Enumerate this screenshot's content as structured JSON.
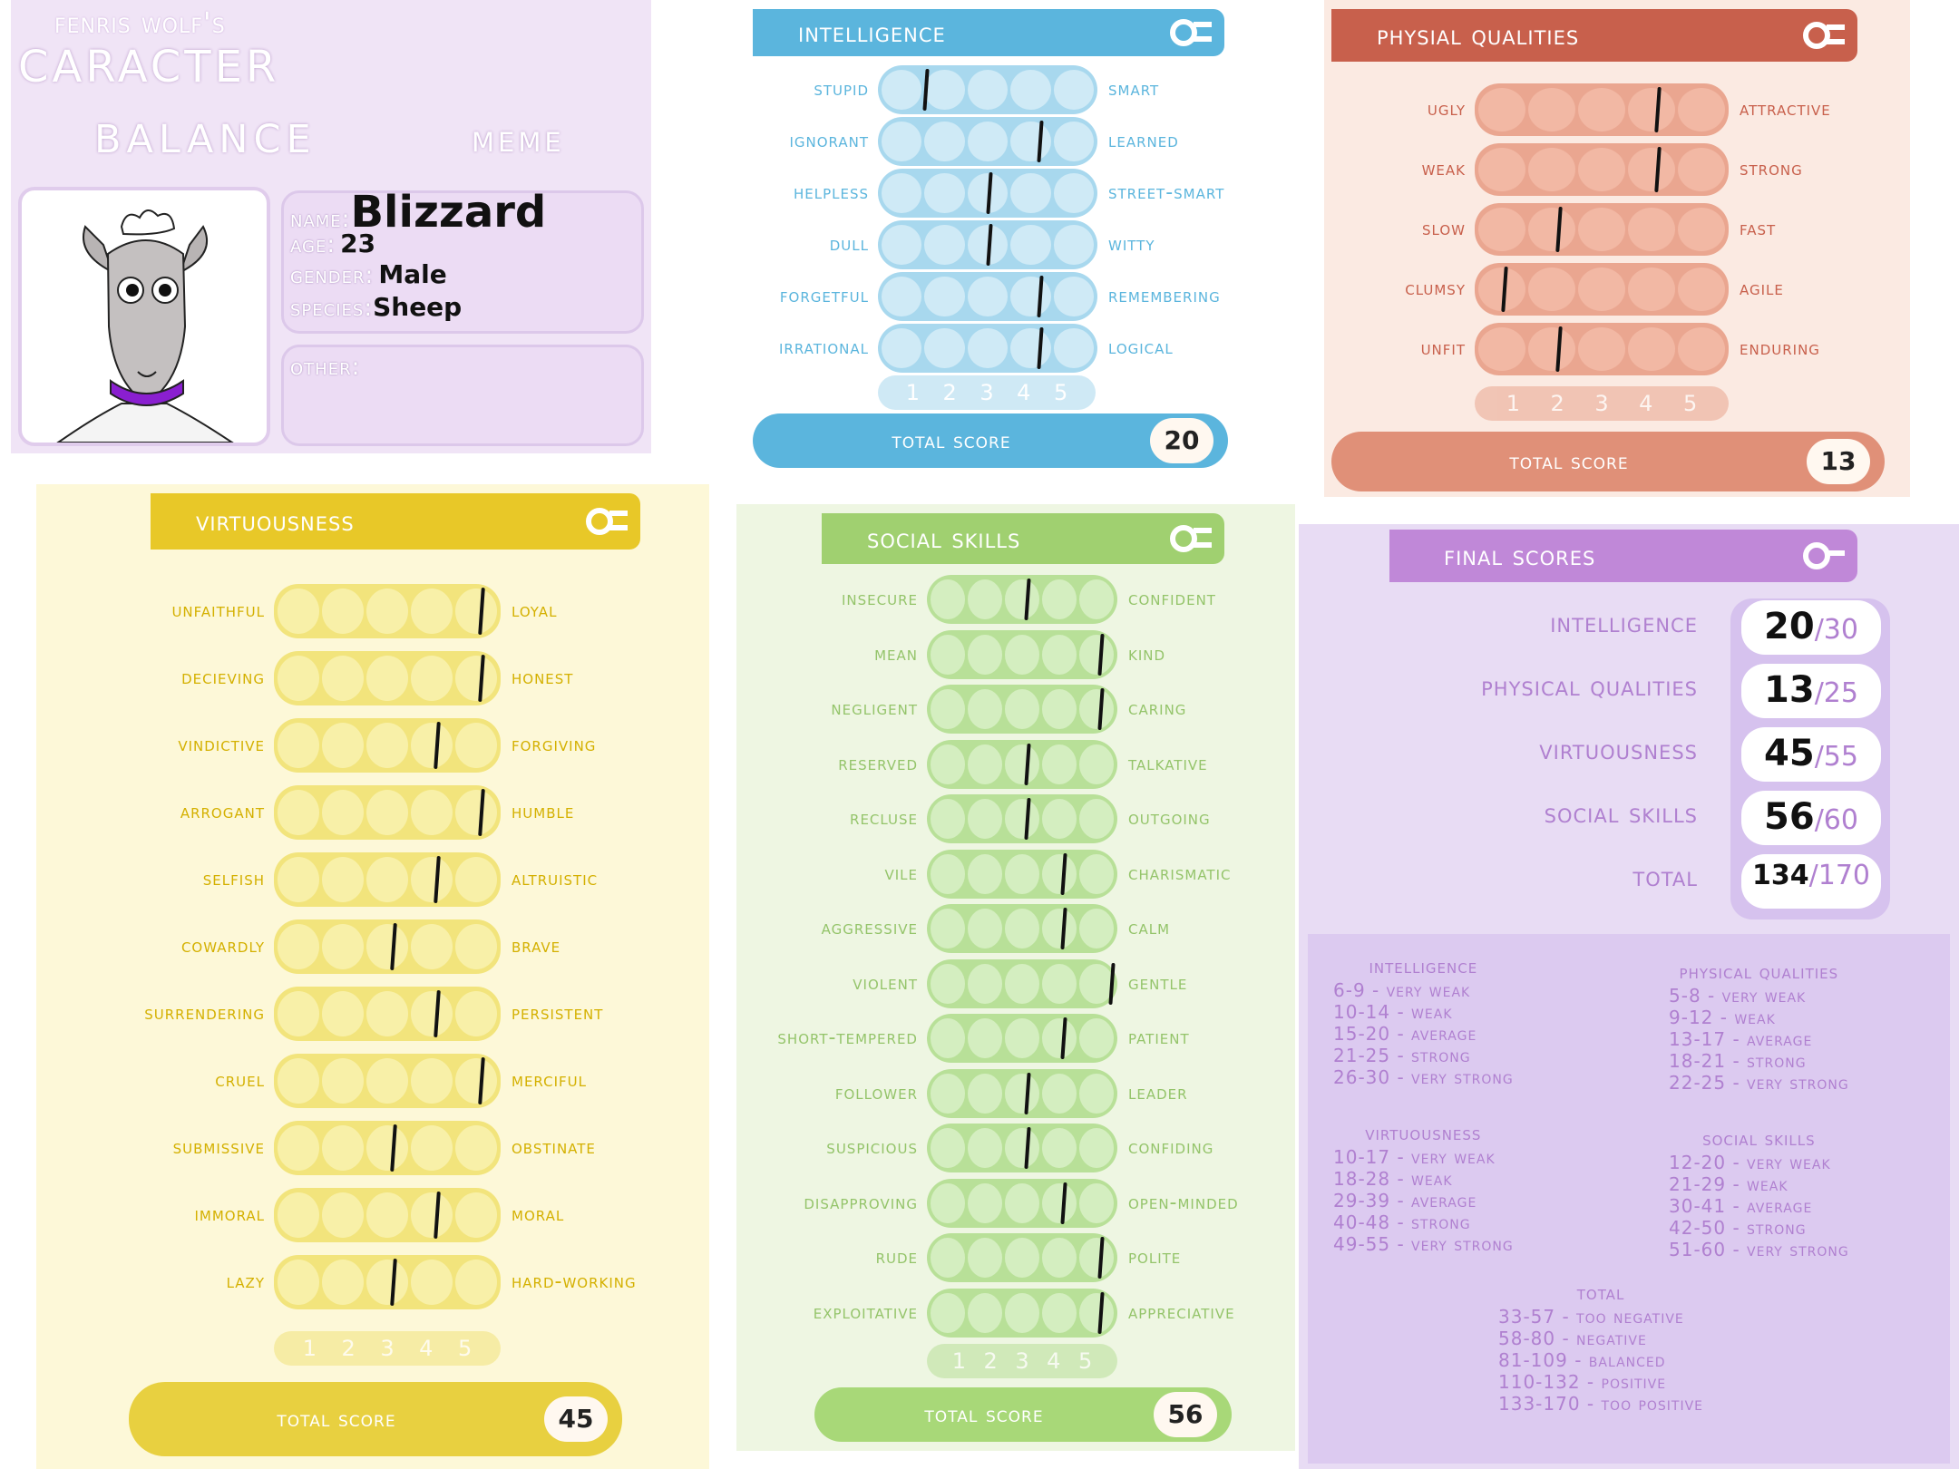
{
  "card": {
    "meme_author": "Fenris Wolf's",
    "title_line1": "Caracter",
    "title_line2": "Balance",
    "title_line3": "meme",
    "name_label": "Name:",
    "name": "Blizzard",
    "age_label": "Age:",
    "age": "23",
    "gender_label": "Gender:",
    "gender": "Male",
    "species_label": "Species:",
    "species": "Sheep",
    "other_label": "Other:"
  },
  "scale_numbers": [
    "1",
    "2",
    "3",
    "4",
    "5"
  ],
  "total_score_label": "Total score",
  "intelligence": {
    "title": "Intelligence",
    "total": "20",
    "rows": [
      {
        "left": "Stupid",
        "right": "Smart",
        "value": 1
      },
      {
        "left": "Ignorant",
        "right": "Learned",
        "value": 3.7
      },
      {
        "left": "Helpless",
        "right": "Street-smart",
        "value": 2.5
      },
      {
        "left": "Dull",
        "right": "Witty",
        "value": 2.5
      },
      {
        "left": "Forgetful",
        "right": "Remembering",
        "value": 3.7
      },
      {
        "left": "Irrational",
        "right": "Logical",
        "value": 3.7
      }
    ]
  },
  "physical": {
    "title": "Physial qualities",
    "total": "13",
    "rows": [
      {
        "left": "Ugly",
        "right": "Attractive",
        "value": 3.6
      },
      {
        "left": "Weak",
        "right": "Strong",
        "value": 3.6
      },
      {
        "left": "Slow",
        "right": "Fast",
        "value": 1.6
      },
      {
        "left": "Clumsy",
        "right": "Agile",
        "value": 0.5
      },
      {
        "left": "Unfit",
        "right": "Enduring",
        "value": 1.6
      }
    ]
  },
  "virtuousness": {
    "title": "Virtuousness",
    "total": "45",
    "rows": [
      {
        "left": "Unfaithful",
        "right": "Loyal",
        "value": 4.6
      },
      {
        "left": "Decieving",
        "right": "Honest",
        "value": 4.6
      },
      {
        "left": "Vindictive",
        "right": "Forgiving",
        "value": 3.6
      },
      {
        "left": "Arrogant",
        "right": "Humble",
        "value": 4.6
      },
      {
        "left": "Selfish",
        "right": "Altruistic",
        "value": 3.6
      },
      {
        "left": "Cowardly",
        "right": "Brave",
        "value": 2.6
      },
      {
        "left": "surrendering",
        "right": "persistent",
        "value": 3.6
      },
      {
        "left": "Cruel",
        "right": "Merciful",
        "value": 4.6
      },
      {
        "left": "Submissive",
        "right": "Obstinate",
        "value": 2.6
      },
      {
        "left": "Immoral",
        "right": "Moral",
        "value": 3.6
      },
      {
        "left": "Lazy",
        "right": "Hard-working",
        "value": 2.6
      }
    ]
  },
  "social": {
    "title": "Social skills",
    "total": "56",
    "rows": [
      {
        "left": "Insecure",
        "right": "Confident",
        "value": 2.6
      },
      {
        "left": "Mean",
        "right": "Kind",
        "value": 4.6
      },
      {
        "left": "Negligent",
        "right": "Caring",
        "value": 4.6
      },
      {
        "left": "Reserved",
        "right": "Talkative",
        "value": 2.6
      },
      {
        "left": "Recluse",
        "right": "Outgoing",
        "value": 2.6
      },
      {
        "left": "Vile",
        "right": "Charismatic",
        "value": 3.6
      },
      {
        "left": "Aggressive",
        "right": "Calm",
        "value": 3.6
      },
      {
        "left": "Violent",
        "right": "Gentle",
        "value": 4.9
      },
      {
        "left": "Short-tempered",
        "right": "Patient",
        "value": 3.6
      },
      {
        "left": "Follower",
        "right": "Leader",
        "value": 2.6
      },
      {
        "left": "Suspicious",
        "right": "Confiding",
        "value": 2.6
      },
      {
        "left": "Disapproving",
        "right": "Open-minded",
        "value": 3.6
      },
      {
        "left": "Rude",
        "right": "Polite",
        "value": 4.6
      },
      {
        "left": "Exploitative",
        "right": "Appreciative",
        "value": 4.6
      }
    ]
  },
  "final": {
    "title": "Final scores",
    "rows": [
      {
        "label": "Intelligence",
        "score": "20",
        "max": "/30"
      },
      {
        "label": "Physical qualities",
        "score": "13",
        "max": "/25"
      },
      {
        "label": "Virtuousness",
        "score": "45",
        "max": "/55"
      },
      {
        "label": "Social skills",
        "score": "56",
        "max": "/60"
      },
      {
        "label": "Total",
        "score": "134",
        "max": "/170"
      }
    ],
    "legend": {
      "intelligence": {
        "title": "Intelligence",
        "items": [
          "6-9 - Very weak",
          "10-14 - weak",
          "15-20 - average",
          "21-25 - strong",
          "26-30 - very strong"
        ]
      },
      "physical": {
        "title": "Physical qualities",
        "items": [
          "5-8 - Very weak",
          "9-12 - weak",
          "13-17 - average",
          "18-21 - strong",
          "22-25 - very strong"
        ]
      },
      "virtuousness": {
        "title": "Virtuousness",
        "items": [
          "10-17 - Very weak",
          "18-28 - weak",
          "29-39 - average",
          "40-48 - strong",
          "49-55 - very strong"
        ]
      },
      "social": {
        "title": "Social skills",
        "items": [
          "12-20 - Very weak",
          "21-29 - weak",
          "30-41 - average",
          "42-50 - strong",
          "51-60 - very strong"
        ]
      },
      "total": {
        "title": "Total",
        "items": [
          "33-57 - Too negative",
          "58-80 - Negative",
          "81-109 - Balanced",
          "110-132 - Positive",
          "133-170 - Too positive"
        ]
      }
    }
  },
  "colors": {
    "intel": "#5bb5dd",
    "phys": "#d9705a",
    "virt": "#e8d040",
    "social": "#a8d878",
    "final": "#c088d8"
  }
}
